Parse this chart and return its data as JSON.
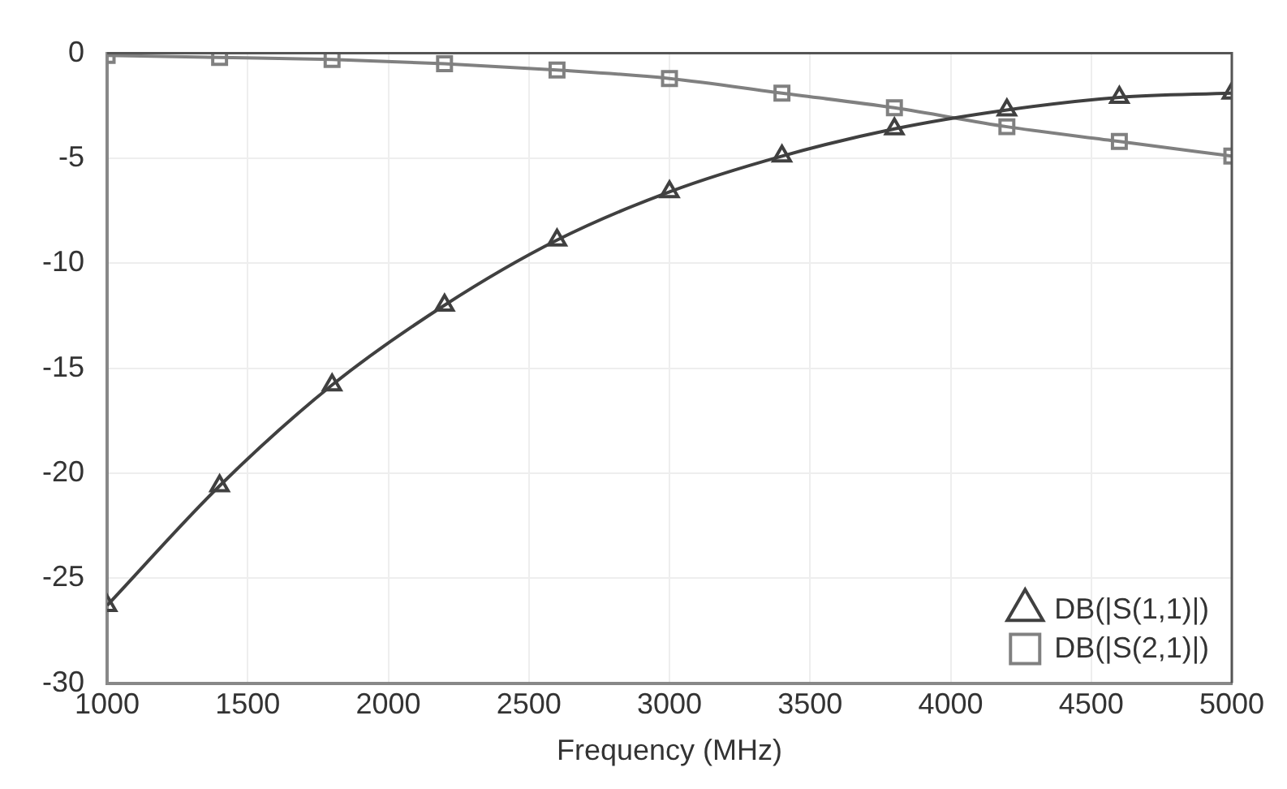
{
  "chart_data": {
    "type": "line",
    "xlabel": "Frequency (MHz)",
    "x": [
      1000,
      1400,
      1800,
      2200,
      2600,
      3000,
      3400,
      3800,
      4200,
      4600,
      5000
    ],
    "series": [
      {
        "name": "DB(|S(1,1)|)",
        "color": "#404040",
        "marker": "triangle",
        "values": [
          -26.3,
          -20.6,
          -15.8,
          -12.0,
          -8.9,
          -6.6,
          -4.9,
          -3.6,
          -2.7,
          -2.1,
          -1.9
        ]
      },
      {
        "name": "DB(|S(2,1)|)",
        "color": "#808080",
        "marker": "square",
        "values": [
          -0.1,
          -0.2,
          -0.3,
          -0.5,
          -0.8,
          -1.2,
          -1.9,
          -2.6,
          -3.5,
          -4.2,
          -4.9
        ]
      }
    ],
    "xlim": [
      1000,
      5000
    ],
    "xticks": [
      1000,
      1500,
      2000,
      2500,
      3000,
      3500,
      4000,
      4500,
      5000
    ],
    "ylim": [
      -30,
      0
    ],
    "yticks": [
      -30,
      -25,
      -20,
      -15,
      -10,
      -5,
      0
    ],
    "grid": true,
    "legend": "bottom right",
    "line_style": "solid"
  }
}
